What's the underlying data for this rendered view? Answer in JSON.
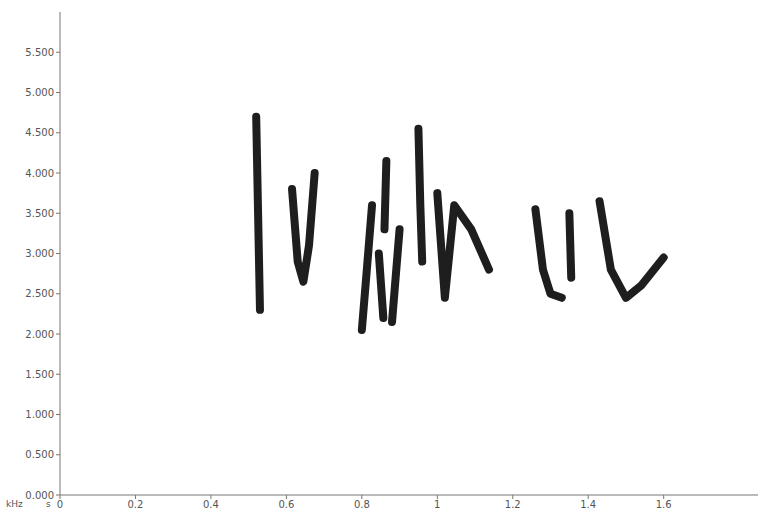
{
  "chart_data": {
    "type": "line",
    "color": "#1e1e1e",
    "x_label": "s",
    "y_label": "kHz",
    "xlim": [
      0,
      1.85
    ],
    "xticks": [
      0,
      0.2,
      0.4,
      0.6,
      0.8,
      1,
      1.2,
      1.4,
      1.6
    ],
    "ylim": [
      0,
      6
    ],
    "yticks": [
      {
        "value": 0,
        "label": "0.000"
      },
      {
        "value": 0.5,
        "label": "0.500"
      },
      {
        "value": 1,
        "label": "1.000"
      },
      {
        "value": 1.5,
        "label": "1.500"
      },
      {
        "value": 2,
        "label": "2.000"
      },
      {
        "value": 2.5,
        "label": "2.500"
      },
      {
        "value": 3,
        "label": "3.000"
      },
      {
        "value": 3.5,
        "label": "3.500"
      },
      {
        "value": 4,
        "label": "4.000"
      },
      {
        "value": 4.5,
        "label": "4.500"
      },
      {
        "value": 5,
        "label": "5.000"
      },
      {
        "value": 5.5,
        "label": "5.500"
      }
    ],
    "grid": false,
    "series": [
      {
        "x": [
          0.52,
          0.525,
          0.53
        ],
        "values": [
          4.7,
          3.5,
          2.3
        ]
      },
      {
        "x": [
          0.615,
          0.63,
          0.645,
          0.66,
          0.675
        ],
        "values": [
          3.8,
          2.9,
          2.65,
          3.1,
          4.0
        ]
      },
      {
        "x": [
          0.8,
          0.815,
          0.827
        ],
        "values": [
          2.05,
          2.9,
          3.6
        ]
      },
      {
        "x": [
          0.845,
          0.857
        ],
        "values": [
          3.0,
          2.2
        ]
      },
      {
        "x": [
          0.86,
          0.865
        ],
        "values": [
          3.3,
          4.15
        ]
      },
      {
        "x": [
          0.88,
          0.9
        ],
        "values": [
          2.15,
          3.3
        ]
      },
      {
        "x": [
          0.95,
          0.955,
          0.96
        ],
        "values": [
          4.55,
          3.6,
          2.9
        ]
      },
      {
        "x": [
          1.0,
          1.02,
          1.045,
          1.09,
          1.137
        ],
        "values": [
          3.75,
          2.45,
          3.6,
          3.3,
          2.8
        ]
      },
      {
        "x": [
          1.26,
          1.28,
          1.3,
          1.33
        ],
        "values": [
          3.55,
          2.8,
          2.5,
          2.45
        ]
      },
      {
        "x": [
          1.35,
          1.355
        ],
        "values": [
          3.5,
          2.7
        ]
      },
      {
        "x": [
          1.43,
          1.46,
          1.5,
          1.54,
          1.6
        ],
        "values": [
          3.65,
          2.8,
          2.45,
          2.6,
          2.95
        ]
      }
    ]
  }
}
